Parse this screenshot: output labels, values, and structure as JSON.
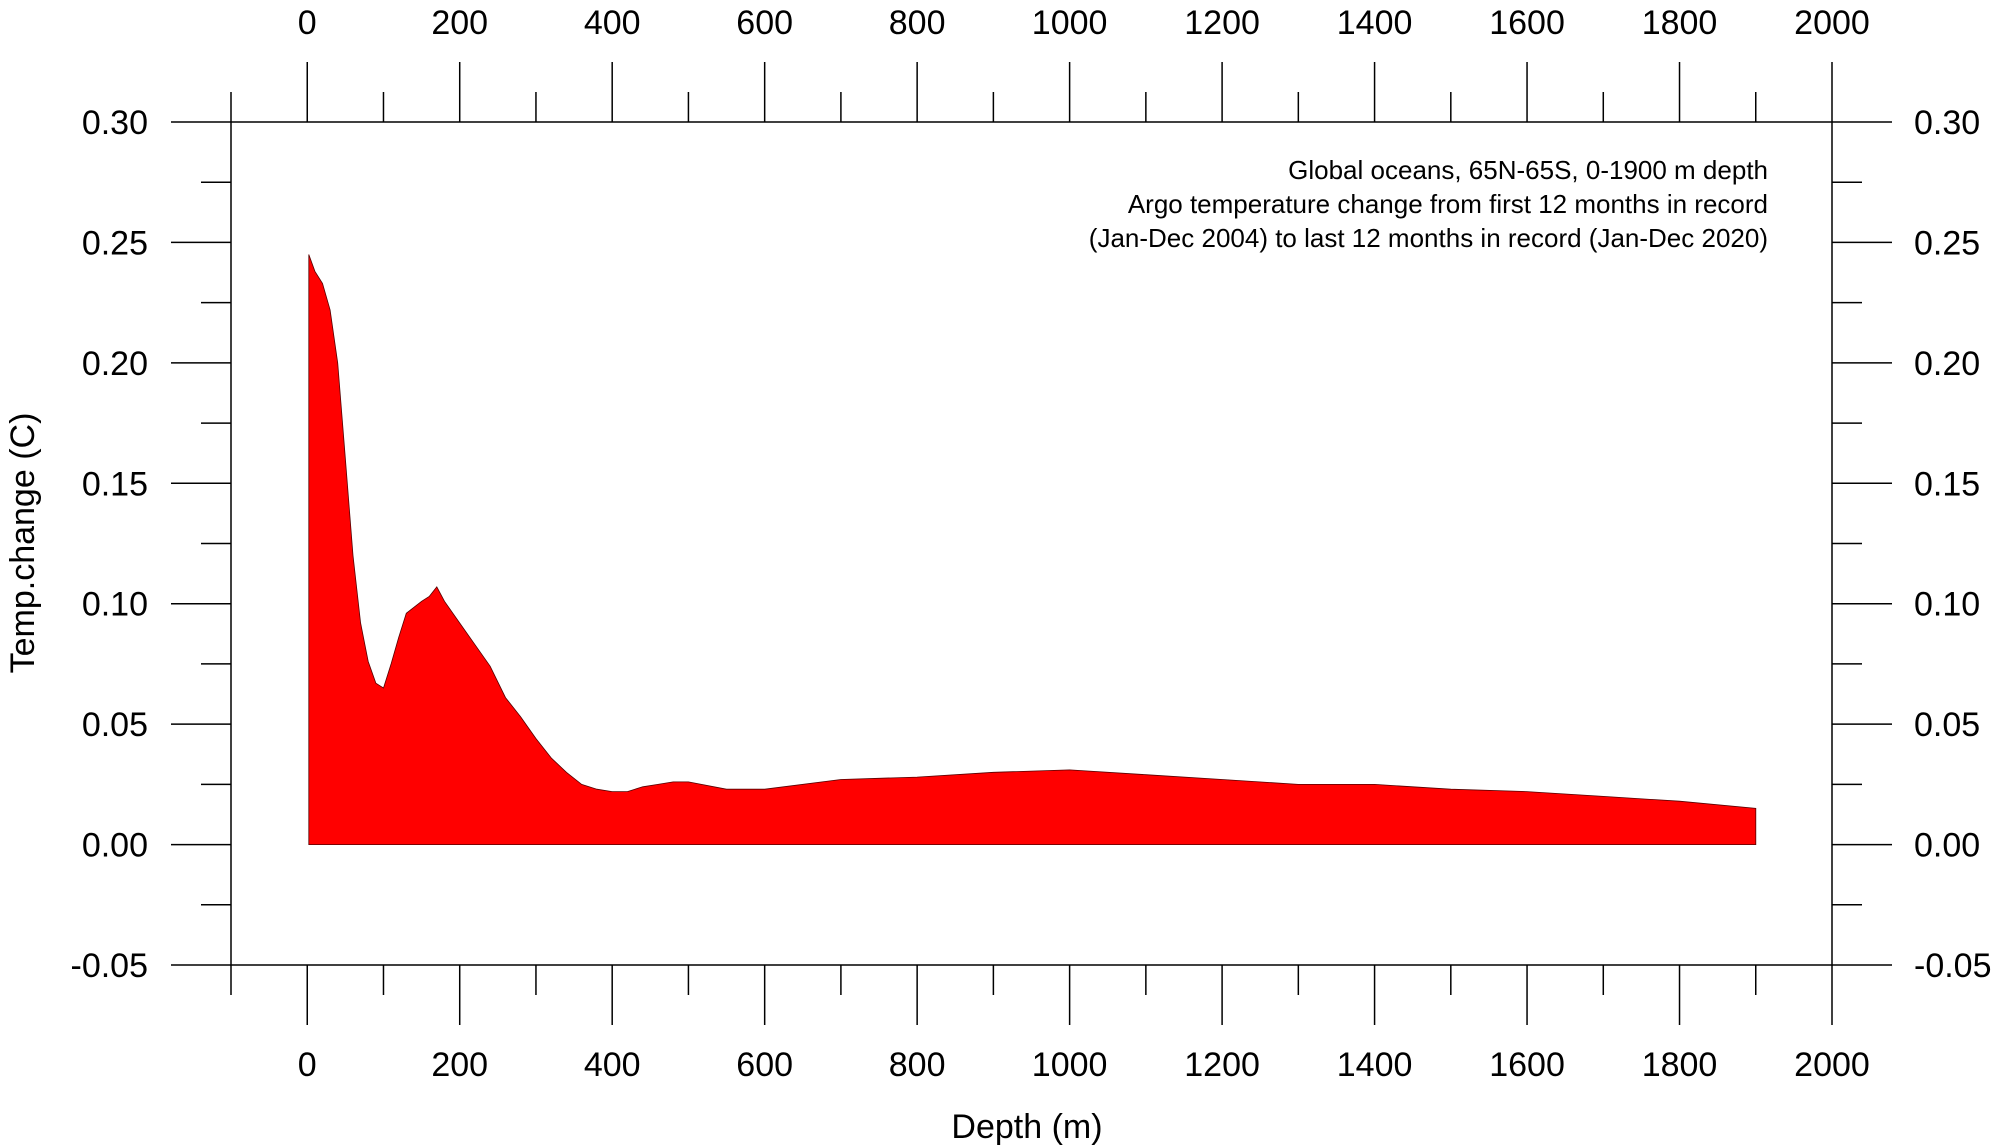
{
  "chart_data": {
    "type": "area",
    "title": "",
    "annotation_lines": [
      "Global oceans, 65N-65S, 0-1900 m depth",
      "Argo temperature change from first 12 months in record",
      "(Jan-Dec 2004) to last 12 months in record (Jan-Dec 2020)"
    ],
    "xlabel": "Depth (m)",
    "ylabel": "Temp.change (C)",
    "xlim": [
      -100,
      2000
    ],
    "ylim": [
      -0.05,
      0.3
    ],
    "x_ticks": [
      0,
      200,
      400,
      600,
      800,
      1000,
      1200,
      1400,
      1600,
      1800,
      2000
    ],
    "x_tick_labels": [
      "0",
      "200",
      "400",
      "600",
      "800",
      "1000",
      "1200",
      "1400",
      "1600",
      "1800",
      "2000"
    ],
    "y_ticks": [
      -0.05,
      0.0,
      0.05,
      0.1,
      0.15,
      0.2,
      0.25,
      0.3
    ],
    "y_tick_labels": [
      "-0.05",
      "0.00",
      "0.05",
      "0.10",
      "0.15",
      "0.20",
      "0.25",
      "0.30"
    ],
    "grid": false,
    "fill_color": "#ff0000",
    "series": [
      {
        "x": [
          2,
          10,
          20,
          30,
          40,
          50,
          60,
          70,
          80,
          90,
          100,
          110,
          120,
          130,
          150,
          160,
          170,
          180,
          200,
          220,
          240,
          260,
          280,
          300,
          320,
          340,
          360,
          380,
          400,
          420,
          440,
          460,
          480,
          500,
          550,
          600,
          700,
          800,
          900,
          1000,
          1100,
          1200,
          1300,
          1400,
          1500,
          1600,
          1700,
          1800,
          1900
        ],
        "y": [
          0.245,
          0.238,
          0.233,
          0.222,
          0.2,
          0.16,
          0.12,
          0.092,
          0.076,
          0.067,
          0.065,
          0.075,
          0.086,
          0.096,
          0.101,
          0.103,
          0.107,
          0.101,
          0.092,
          0.083,
          0.074,
          0.061,
          0.053,
          0.044,
          0.036,
          0.03,
          0.025,
          0.023,
          0.022,
          0.022,
          0.024,
          0.025,
          0.026,
          0.026,
          0.023,
          0.023,
          0.027,
          0.028,
          0.03,
          0.031,
          0.029,
          0.027,
          0.025,
          0.025,
          0.023,
          0.022,
          0.02,
          0.018,
          0.015
        ]
      }
    ]
  }
}
